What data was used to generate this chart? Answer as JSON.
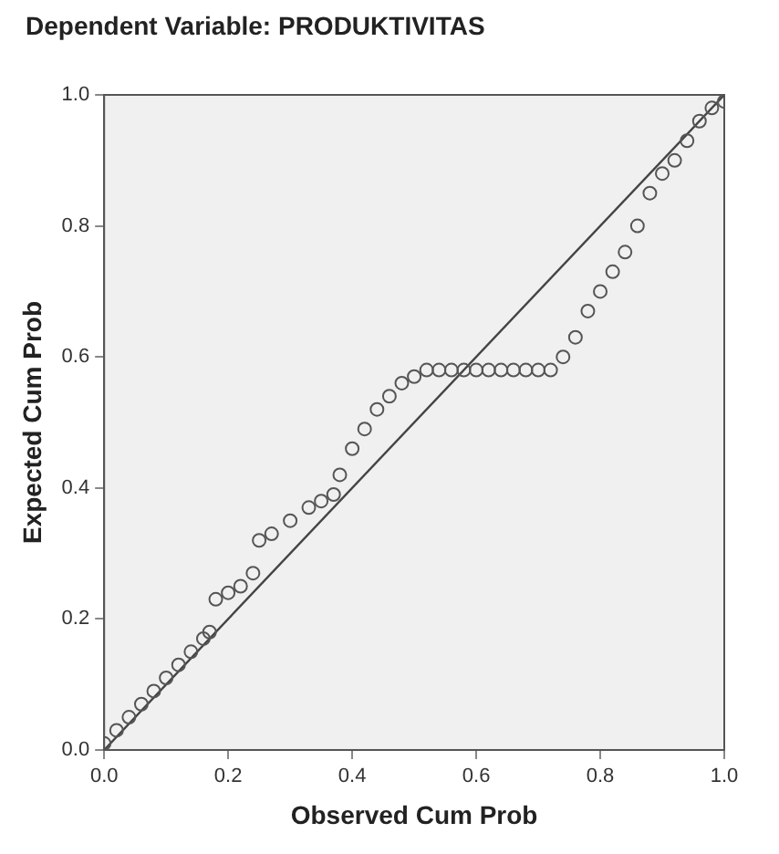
{
  "chart_data": {
    "type": "scatter",
    "title": "Dependent Variable: PRODUKTIVITAS",
    "xlabel": "Observed Cum Prob",
    "ylabel": "Expected Cum Prob",
    "xlim": [
      0,
      1
    ],
    "ylim": [
      0,
      1
    ],
    "xticks": [
      {
        "value": 0,
        "label": "0.0"
      },
      {
        "value": 0.2,
        "label": "0.2"
      },
      {
        "value": 0.4,
        "label": "0.4"
      },
      {
        "value": 0.6,
        "label": "0.6"
      },
      {
        "value": 0.8,
        "label": "0.8"
      },
      {
        "value": 1,
        "label": "1.0"
      }
    ],
    "yticks": [
      {
        "value": 0,
        "label": "0.0"
      },
      {
        "value": 0.2,
        "label": "0.2"
      },
      {
        "value": 0.4,
        "label": "0.4"
      },
      {
        "value": 0.6,
        "label": "0.6"
      },
      {
        "value": 0.8,
        "label": "0.8"
      },
      {
        "value": 1,
        "label": "1.0"
      }
    ],
    "grid": false,
    "legend": false,
    "marker": "circle",
    "series": [
      {
        "color": "#555555",
        "x": [
          0,
          0.02,
          0.04,
          0.06,
          0.08,
          0.1,
          0.12,
          0.14,
          0.16,
          0.17,
          0.18,
          0.2,
          0.22,
          0.24,
          0.25,
          0.27,
          0.3,
          0.33,
          0.35,
          0.37,
          0.38,
          0.4,
          0.42,
          0.44,
          0.46,
          0.48,
          0.5,
          0.52,
          0.54,
          0.56,
          0.58,
          0.6,
          0.62,
          0.64,
          0.66,
          0.68,
          0.7,
          0.72,
          0.74,
          0.76,
          0.78,
          0.8,
          0.82,
          0.84,
          0.86,
          0.88,
          0.9,
          0.92,
          0.94,
          0.96,
          0.98,
          1.0
        ],
        "values": [
          0.01,
          0.03,
          0.05,
          0.07,
          0.09,
          0.11,
          0.13,
          0.15,
          0.17,
          0.18,
          0.23,
          0.24,
          0.25,
          0.27,
          0.32,
          0.33,
          0.35,
          0.37,
          0.38,
          0.39,
          0.42,
          0.46,
          0.49,
          0.52,
          0.54,
          0.56,
          0.57,
          0.58,
          0.58,
          0.58,
          0.58,
          0.58,
          0.58,
          0.58,
          0.58,
          0.58,
          0.58,
          0.58,
          0.6,
          0.63,
          0.67,
          0.7,
          0.73,
          0.76,
          0.8,
          0.85,
          0.88,
          0.9,
          0.93,
          0.96,
          0.98,
          0.99
        ]
      },
      {
        "type": "line",
        "color": "#444444",
        "x": [
          0,
          1
        ],
        "values": [
          0,
          1
        ],
        "marker": "none"
      }
    ]
  }
}
